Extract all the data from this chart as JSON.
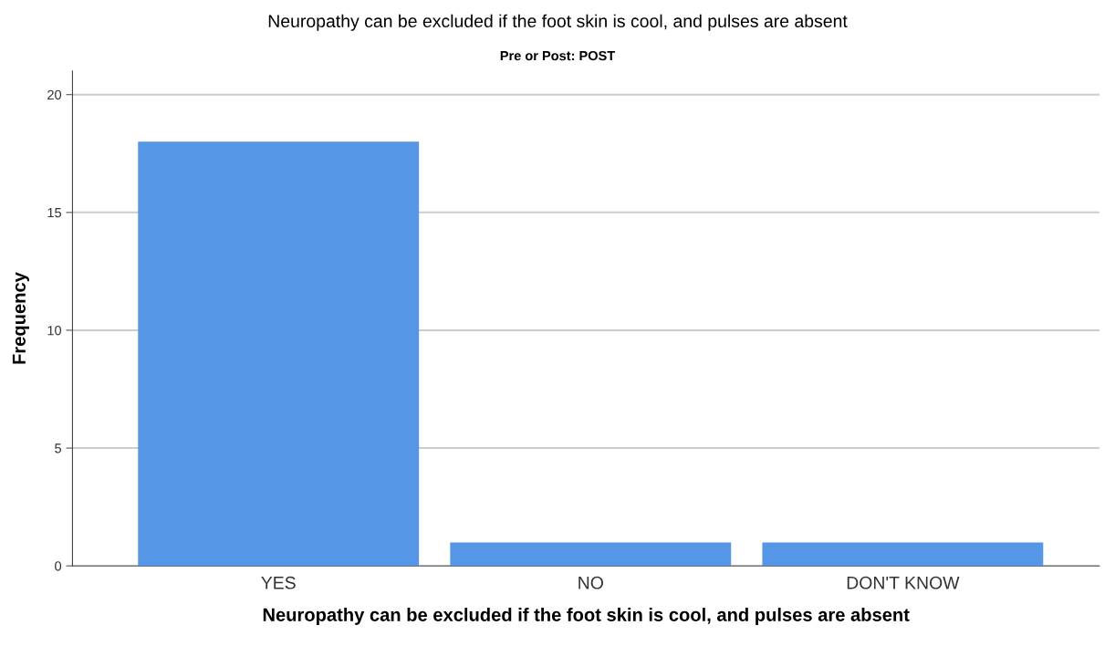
{
  "chart_data": {
    "type": "bar",
    "title": "Neuropathy can be excluded if the foot skin is cool, and pulses are absent",
    "subtitle": "Pre or Post: POST",
    "xlabel": "Neuropathy can be excluded if the foot skin is cool, and pulses are absent",
    "ylabel": "Frequency",
    "categories": [
      "YES",
      "NO",
      "DON'T KNOW"
    ],
    "values": [
      18,
      1,
      1
    ],
    "color": "#5596e6",
    "ylim": [
      0,
      21
    ],
    "yticks": [
      0,
      5,
      10,
      15,
      20
    ],
    "grid": "y",
    "legend": false
  }
}
